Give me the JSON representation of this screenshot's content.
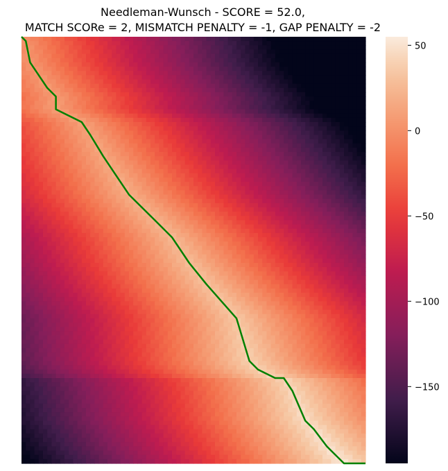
{
  "chart_data": {
    "type": "heatmap",
    "title": "Needleman-Wunsch - SCORE = 52.0,\nMATCH SCORe = 2, MISMATCH PENALTY = -1, GAP PENALTY = -2",
    "title_lines": [
      "Needleman-Wunsch - SCORE = 52.0,",
      "MATCH SCORe = 2, MISMATCH PENALTY = -1, GAP PENALTY = -2"
    ],
    "score": 52.0,
    "match_score": 2,
    "mismatch_penalty": -1,
    "gap_penalty": -2,
    "colormap": "rocket",
    "colorbar": {
      "min": -195,
      "max": 55,
      "ticks": [
        50,
        0,
        -50,
        -100,
        -150
      ],
      "tick_labels": [
        "50",
        "0",
        "−50",
        "−100",
        "−150"
      ]
    },
    "matrix": {
      "rows": 100,
      "cols": 80
    },
    "corner_values": {
      "top_left": 0,
      "top_right": -192,
      "bottom_left": -195,
      "bottom_right": 52
    },
    "axes_ticks_visible": false,
    "path_color": "#008000",
    "path": [
      [
        0,
        0
      ],
      [
        1,
        1
      ],
      [
        6,
        2
      ],
      [
        12,
        6
      ],
      [
        14,
        8
      ],
      [
        17,
        8
      ],
      [
        20,
        14
      ],
      [
        23,
        16
      ],
      [
        28,
        19
      ],
      [
        31,
        21
      ],
      [
        37,
        25
      ],
      [
        39,
        27
      ],
      [
        43,
        31
      ],
      [
        47,
        35
      ],
      [
        53,
        39
      ],
      [
        58,
        43
      ],
      [
        66,
        50
      ],
      [
        76,
        53
      ],
      [
        78,
        55
      ],
      [
        79,
        57
      ],
      [
        80,
        59
      ],
      [
        80,
        61
      ],
      [
        83,
        63
      ],
      [
        90,
        66
      ],
      [
        92,
        68
      ],
      [
        96,
        71
      ],
      [
        97,
        72
      ],
      [
        100,
        75
      ],
      [
        100,
        80
      ]
    ]
  }
}
